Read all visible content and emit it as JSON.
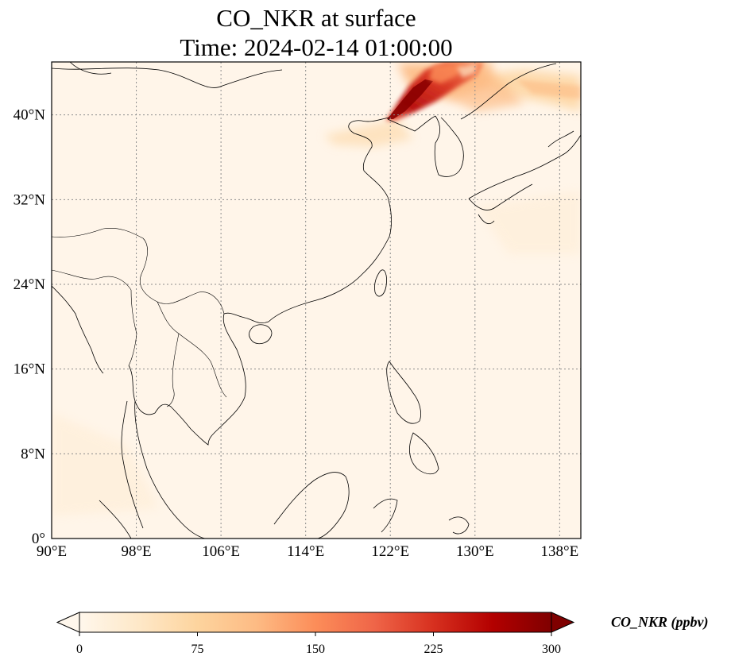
{
  "title": {
    "line1": "CO_NKR at surface",
    "line2": "Time: 2024-02-14 01:00:00"
  },
  "map": {
    "extent": {
      "lon": [
        90,
        140
      ],
      "lat": [
        0,
        45
      ]
    },
    "projection": "PlateCarree",
    "gridlines": "dotted",
    "lon_ticks": [
      {
        "value": 90,
        "label": "90°E"
      },
      {
        "value": 98,
        "label": "98°E"
      },
      {
        "value": 106,
        "label": "106°E"
      },
      {
        "value": 114,
        "label": "114°E"
      },
      {
        "value": 122,
        "label": "122°E"
      },
      {
        "value": 130,
        "label": "130°E"
      },
      {
        "value": 138,
        "label": "138°E"
      }
    ],
    "lat_ticks": [
      {
        "value": 0,
        "label": "0°"
      },
      {
        "value": 8,
        "label": "8°N"
      },
      {
        "value": 16,
        "label": "16°N"
      },
      {
        "value": 24,
        "label": "24°N"
      },
      {
        "value": 32,
        "label": "32°N"
      },
      {
        "value": 40,
        "label": "40°N"
      }
    ],
    "colors": {
      "background": "#fff5e9",
      "coast": "#000000",
      "grid": "#8c8c8c"
    }
  },
  "colorbar": {
    "label": "CO_NKR (ppbv)",
    "colormap": "OrRd",
    "range": [
      0,
      300
    ],
    "extend": "both",
    "ticks": [
      {
        "value": 0,
        "label": "0"
      },
      {
        "value": 75,
        "label": "75"
      },
      {
        "value": 150,
        "label": "150"
      },
      {
        "value": 225,
        "label": "225"
      },
      {
        "value": 300,
        "label": "300"
      }
    ],
    "stops": [
      "#fff7ec",
      "#fee8c8",
      "#fdd49e",
      "#fdbb84",
      "#fc8d59",
      "#ef6548",
      "#d7301f",
      "#b30000",
      "#7f0000"
    ]
  }
}
